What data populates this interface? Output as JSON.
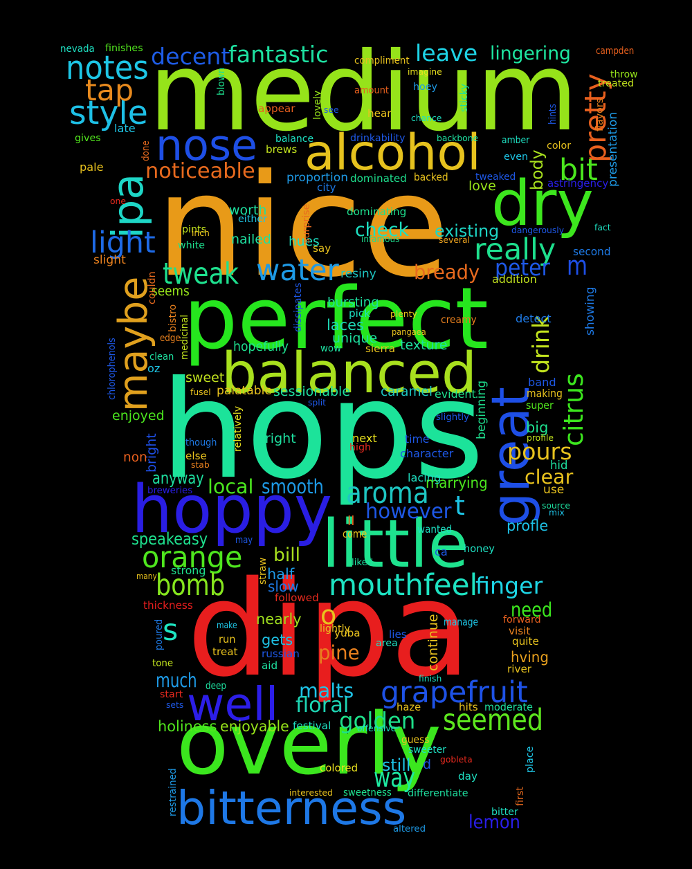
{
  "background": "#000000",
  "words": [
    {
      "text": "medium",
      "color": "#96e31a"
    },
    {
      "text": "nice",
      "color": "#e89a18"
    },
    {
      "text": "hops",
      "color": "#1ce39a"
    },
    {
      "text": "dipa",
      "color": "#e81e1e"
    },
    {
      "text": "perfect",
      "color": "#26e61e"
    },
    {
      "text": "overly",
      "color": "#3be61e"
    },
    {
      "text": "little",
      "color": "#1ee38e"
    },
    {
      "text": "hoppy",
      "color": "#2a1ee3"
    },
    {
      "text": "balanced",
      "color": "#a8e01e"
    },
    {
      "text": "great",
      "color": "#1e4fe6"
    },
    {
      "text": "well",
      "color": "#2c1ee8"
    },
    {
      "text": "bitterness",
      "color": "#1e78e6"
    },
    {
      "text": "maybe",
      "color": "#e0a01e"
    },
    {
      "text": "alcohol",
      "color": "#e6c21e"
    },
    {
      "text": "dry",
      "color": "#3de61e"
    },
    {
      "text": "nose",
      "color": "#1e4fe6"
    },
    {
      "text": "ipa",
      "color": "#1ed6c6"
    },
    {
      "text": "grapefruit",
      "color": "#1e52e6"
    },
    {
      "text": "mouthfeel",
      "color": "#1ee3c2"
    },
    {
      "text": "seemed",
      "color": "#5de61e"
    },
    {
      "text": "orange",
      "color": "#4fe61e"
    },
    {
      "text": "aroma",
      "color": "#1ec6c2"
    },
    {
      "text": "really",
      "color": "#1ee08e"
    },
    {
      "text": "bomb",
      "color": "#86e61e"
    },
    {
      "text": "water",
      "color": "#1e9ae6"
    },
    {
      "text": "pretty",
      "color": "#e8601e"
    },
    {
      "text": "citrus",
      "color": "#3ce61e"
    },
    {
      "text": "style",
      "color": "#1ec0e6"
    },
    {
      "text": "notes",
      "color": "#1ec6e6"
    },
    {
      "text": "tweak",
      "color": "#1ee08e"
    },
    {
      "text": "bit",
      "color": "#4be61e"
    },
    {
      "text": "light",
      "color": "#1e6ae6"
    },
    {
      "text": "way",
      "color": "#1ee8a0"
    },
    {
      "text": "drink",
      "color": "#c2e31e"
    },
    {
      "text": "tap",
      "color": "#e88a1e"
    },
    {
      "text": "finger",
      "color": "#1ed6e6"
    },
    {
      "text": "fantastic",
      "color": "#1ee0a0"
    },
    {
      "text": "leave",
      "color": "#1ed4e6"
    },
    {
      "text": "decent",
      "color": "#1e5ce6"
    },
    {
      "text": "noticeable",
      "color": "#e86a1e"
    },
    {
      "text": "golden",
      "color": "#1ee08a"
    },
    {
      "text": "peter",
      "color": "#1e58e6"
    },
    {
      "text": "pours",
      "color": "#e8c21e"
    },
    {
      "text": "however",
      "color": "#1e58e6"
    },
    {
      "text": "floral",
      "color": "#1ed6b4"
    },
    {
      "text": "lemon",
      "color": "#2a1ee8"
    },
    {
      "text": "much",
      "color": "#1e9ae6"
    },
    {
      "text": "smooth",
      "color": "#1e9ae6"
    },
    {
      "text": "malts",
      "color": "#1ec2e6"
    },
    {
      "text": "body",
      "color": "#a8e01e"
    },
    {
      "text": "lingering",
      "color": "#1ee6a0"
    },
    {
      "text": "check",
      "color": "#1ee0c2"
    },
    {
      "text": "bready",
      "color": "#e86a1e"
    },
    {
      "text": "clear",
      "color": "#e8c21e"
    },
    {
      "text": "m",
      "color": "#1e4fe6"
    },
    {
      "text": "t",
      "color": "#1ec6e6"
    },
    {
      "text": "s",
      "color": "#1ee6c2"
    },
    {
      "text": "o",
      "color": "#e8c21e"
    },
    {
      "text": "local",
      "color": "#4be61e"
    },
    {
      "text": "bill",
      "color": "#a8e01e"
    },
    {
      "text": "pine",
      "color": "#e8801e"
    },
    {
      "text": "need",
      "color": "#3ce61e"
    },
    {
      "text": "speakeasy",
      "color": "#1ee08e"
    },
    {
      "text": "existing",
      "color": "#1ed6c6"
    },
    {
      "text": "worth",
      "color": "#1ee0a0"
    },
    {
      "text": "anyway",
      "color": "#1ee0a0"
    },
    {
      "text": "marrying",
      "color": "#4be61e"
    },
    {
      "text": "holiness",
      "color": "#52e61e"
    },
    {
      "text": "enjoyable",
      "color": "#96e31a"
    },
    {
      "text": "hving",
      "color": "#e8a01e"
    },
    {
      "text": "still",
      "color": "#1ec2e6"
    },
    {
      "text": "half",
      "color": "#1e9ae6"
    },
    {
      "text": "nearly",
      "color": "#a0e01e"
    },
    {
      "text": "gets",
      "color": "#1ec2e6"
    },
    {
      "text": "continue",
      "color": "#e8c21e"
    },
    {
      "text": "profle",
      "color": "#1ec2e6"
    },
    {
      "text": "big",
      "color": "#1ee08e"
    },
    {
      "text": "love",
      "color": "#96e31a"
    },
    {
      "text": "texture",
      "color": "#1ee0a0"
    },
    {
      "text": "sessionable",
      "color": "#1ee0a0"
    },
    {
      "text": "caramel",
      "color": "#1ec6c2"
    },
    {
      "text": "laces",
      "color": "#1ed6b4"
    },
    {
      "text": "unique",
      "color": "#1ee0a0"
    },
    {
      "text": "bursting",
      "color": "#1ee0a0"
    },
    {
      "text": "hopefully",
      "color": "#1ee08e"
    },
    {
      "text": "sweet",
      "color": "#c2e31e"
    },
    {
      "text": "palatable",
      "color": "#e8c21e"
    },
    {
      "text": "enjoyed",
      "color": "#4be61e"
    },
    {
      "text": "bright",
      "color": "#1e4fe6"
    },
    {
      "text": "non",
      "color": "#e8601e"
    },
    {
      "text": "right",
      "color": "#1ee0a0"
    },
    {
      "text": "slow",
      "color": "#1e7ae6"
    },
    {
      "text": "strong",
      "color": "#1ee08e"
    },
    {
      "text": "nailed",
      "color": "#1ee0a0"
    },
    {
      "text": "hues",
      "color": "#1ee0c2"
    },
    {
      "text": "seems",
      "color": "#96e31a"
    },
    {
      "text": "white",
      "color": "#1ee08e"
    },
    {
      "text": "slight",
      "color": "#e8801e"
    },
    {
      "text": "pints",
      "color": "#c2e31e"
    },
    {
      "text": "either",
      "color": "#1ec6e6"
    },
    {
      "text": "resiny",
      "color": "#1ec6c2"
    },
    {
      "text": "dominated",
      "color": "#1ee08e"
    },
    {
      "text": "dominating",
      "color": "#1ee08e"
    },
    {
      "text": "proportion",
      "color": "#1e9ae6"
    },
    {
      "text": "city",
      "color": "#1e7ae6"
    },
    {
      "text": "backed",
      "color": "#e8c21e"
    },
    {
      "text": "tweaked",
      "color": "#1e58e6"
    },
    {
      "text": "astringency",
      "color": "#2a1ee8"
    },
    {
      "text": "presentation",
      "color": "#1e9ae6"
    },
    {
      "text": "flavors",
      "color": "#e8801e"
    },
    {
      "text": "addition",
      "color": "#c2e31e"
    },
    {
      "text": "second",
      "color": "#1e7ae6"
    },
    {
      "text": "showing",
      "color": "#1e7ae6"
    },
    {
      "text": "detect",
      "color": "#1e7ae6"
    },
    {
      "text": "creamy",
      "color": "#e8801e"
    },
    {
      "text": "band",
      "color": "#1e58e6"
    },
    {
      "text": "making",
      "color": "#e8c21e"
    },
    {
      "text": "super",
      "color": "#52e61e"
    },
    {
      "text": "profile",
      "color": "#c2e31e"
    },
    {
      "text": "hid",
      "color": "#1ee0a0"
    },
    {
      "text": "use",
      "color": "#e8c21e"
    },
    {
      "text": "source",
      "color": "#1ee0a0"
    },
    {
      "text": "mix",
      "color": "#1ec2e6"
    },
    {
      "text": "honey",
      "color": "#1ee0c2"
    },
    {
      "text": "wanted",
      "color": "#1ee0c2"
    },
    {
      "text": "ca",
      "color": "#1e58e6"
    },
    {
      "text": "come",
      "color": "#e8c21e"
    },
    {
      "text": "ll",
      "color": "#e8601e"
    },
    {
      "text": "lacing",
      "color": "#1ee0c2"
    },
    {
      "text": "time",
      "color": "#1e58e6"
    },
    {
      "text": "character",
      "color": "#1e58e6"
    },
    {
      "text": "next",
      "color": "#e8e01e"
    },
    {
      "text": "high",
      "color": "#e82a1e"
    },
    {
      "text": "evident",
      "color": "#1ee08e"
    },
    {
      "text": "slightly",
      "color": "#1e58e6"
    },
    {
      "text": "beginning",
      "color": "#1ee08e"
    },
    {
      "text": "split",
      "color": "#1e58e6"
    },
    {
      "text": "fusel",
      "color": "#e8c21e"
    },
    {
      "text": "sierra",
      "color": "#e8c21e"
    },
    {
      "text": "pangaea",
      "color": "#e8c21e"
    },
    {
      "text": "wow",
      "color": "#1ee0a0"
    },
    {
      "text": "pick",
      "color": "#1ee0c2"
    },
    {
      "text": "plenty",
      "color": "#e8c21e"
    },
    {
      "text": "dissipates",
      "color": "#1e58e6"
    },
    {
      "text": "infamous",
      "color": "#1ee08e"
    },
    {
      "text": "say",
      "color": "#e8c21e"
    },
    {
      "text": "several",
      "color": "#e8a01e"
    },
    {
      "text": "dangerously",
      "color": "#1e58e6"
    },
    {
      "text": "fact",
      "color": "#1ee0c2"
    },
    {
      "text": "surprise",
      "color": "#e86a1e"
    },
    {
      "text": "inch",
      "color": "#e8c21e"
    },
    {
      "text": "one",
      "color": "#e82a1e"
    },
    {
      "text": "pale",
      "color": "#e8c21e"
    },
    {
      "text": "gives",
      "color": "#52e61e"
    },
    {
      "text": "late",
      "color": "#1ec6e6"
    },
    {
      "text": "done",
      "color": "#e86a1e"
    },
    {
      "text": "appear",
      "color": "#e8601e"
    },
    {
      "text": "lovely",
      "color": "#96e31a"
    },
    {
      "text": "see",
      "color": "#1e58e6"
    },
    {
      "text": "hear",
      "color": "#e8c21e"
    },
    {
      "text": "chance",
      "color": "#1ee0c2"
    },
    {
      "text": "balance",
      "color": "#1ee0c2"
    },
    {
      "text": "brews",
      "color": "#c2e31e"
    },
    {
      "text": "drinkability",
      "color": "#1e58e6"
    },
    {
      "text": "backbone",
      "color": "#1ee0a0"
    },
    {
      "text": "amber",
      "color": "#1ee0c2"
    },
    {
      "text": "even",
      "color": "#1ec6e6"
    },
    {
      "text": "color",
      "color": "#e8c21e"
    },
    {
      "text": "hints",
      "color": "#1e58e6"
    },
    {
      "text": "sticky",
      "color": "#1ee0a0"
    },
    {
      "text": "hoey",
      "color": "#1e9ae6"
    },
    {
      "text": "imagine",
      "color": "#e8e01e"
    },
    {
      "text": "amount",
      "color": "#e8601e"
    },
    {
      "text": "compliment",
      "color": "#e8c21e"
    },
    {
      "text": "blown",
      "color": "#1ee08e"
    },
    {
      "text": "finishes",
      "color": "#52e61e"
    },
    {
      "text": "nevada",
      "color": "#1ee0c2"
    },
    {
      "text": "campden",
      "color": "#e8601e"
    },
    {
      "text": "throw",
      "color": "#96e31a"
    },
    {
      "text": "treated",
      "color": "#c2e31e"
    },
    {
      "text": "couldn",
      "color": "#e86a1e"
    },
    {
      "text": "bistro",
      "color": "#e8801e"
    },
    {
      "text": "medicinal",
      "color": "#c2e31e"
    },
    {
      "text": "edge",
      "color": "#e8801e"
    },
    {
      "text": "clean",
      "color": "#1ee0a0"
    },
    {
      "text": "oz",
      "color": "#1ec6e6"
    },
    {
      "text": "chlorophenols",
      "color": "#1e58e6"
    },
    {
      "text": "though",
      "color": "#1e7ae6"
    },
    {
      "text": "else",
      "color": "#e8c21e"
    },
    {
      "text": "stab",
      "color": "#e8801e"
    },
    {
      "text": "relatively",
      "color": "#e8e01e"
    },
    {
      "text": "breweries",
      "color": "#2a1ee8"
    },
    {
      "text": "may",
      "color": "#1e58e6"
    },
    {
      "text": "liked",
      "color": "#1ee0a0"
    },
    {
      "text": "many",
      "color": "#e8c21e"
    },
    {
      "text": "straw",
      "color": "#e8c21e"
    },
    {
      "text": "followed",
      "color": "#e82a1e"
    },
    {
      "text": "thickness",
      "color": "#e81e1e"
    },
    {
      "text": "make",
      "color": "#1ec6e6"
    },
    {
      "text": "poured",
      "color": "#1e7ae6"
    },
    {
      "text": "run",
      "color": "#e8c21e"
    },
    {
      "text": "treat",
      "color": "#e8c21e"
    },
    {
      "text": "russian",
      "color": "#1e58e6"
    },
    {
      "text": "aid",
      "color": "#1ee0a0"
    },
    {
      "text": "tone",
      "color": "#c2e31e"
    },
    {
      "text": "yuba",
      "color": "#e8c21e"
    },
    {
      "text": "lightly",
      "color": "#e8c21e"
    },
    {
      "text": "lies",
      "color": "#1e58e6"
    },
    {
      "text": "area",
      "color": "#1ee0c2"
    },
    {
      "text": "manage",
      "color": "#1ec6e6"
    },
    {
      "text": "forward",
      "color": "#e8601e"
    },
    {
      "text": "visit",
      "color": "#e8801e"
    },
    {
      "text": "quite",
      "color": "#e8c21e"
    },
    {
      "text": "river",
      "color": "#e8c21e"
    },
    {
      "text": "deep",
      "color": "#1ee0a0"
    },
    {
      "text": "start",
      "color": "#e82a1e"
    },
    {
      "text": "sets",
      "color": "#1e58e6"
    },
    {
      "text": "finish",
      "color": "#1ee0c2"
    },
    {
      "text": "haze",
      "color": "#e8c21e"
    },
    {
      "text": "hits",
      "color": "#e8c21e"
    },
    {
      "text": "moderate",
      "color": "#1ee0a0"
    },
    {
      "text": "festival",
      "color": "#1ee0c2"
    },
    {
      "text": "offensive",
      "color": "#1ee0c2"
    },
    {
      "text": "guess",
      "color": "#e8c21e"
    },
    {
      "text": "sweeter",
      "color": "#1ee0c2"
    },
    {
      "text": "d",
      "color": "#1e58e6"
    },
    {
      "text": "gobleta",
      "color": "#e82a1e"
    },
    {
      "text": "place",
      "color": "#1ec6e6"
    },
    {
      "text": "colored",
      "color": "#e8e01e"
    },
    {
      "text": "day",
      "color": "#1ee0c2"
    },
    {
      "text": "first",
      "color": "#e86a1e"
    },
    {
      "text": "restrained",
      "color": "#1e9ae6"
    },
    {
      "text": "interested",
      "color": "#e8c21e"
    },
    {
      "text": "sweetness",
      "color": "#1ee08e"
    },
    {
      "text": "differentiate",
      "color": "#1ee0a0"
    },
    {
      "text": "bitter",
      "color": "#1ee0c2"
    },
    {
      "text": "altered",
      "color": "#1e9ae6"
    }
  ]
}
